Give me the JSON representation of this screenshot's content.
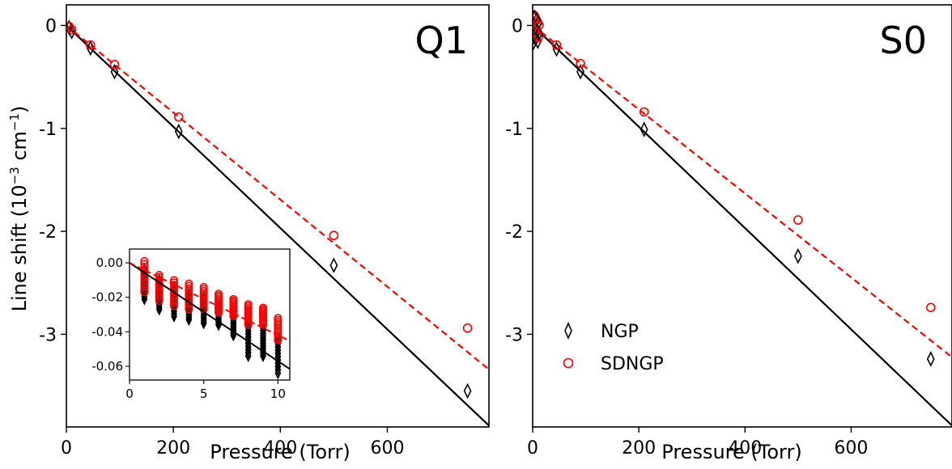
{
  "chart_data": [
    {
      "type": "scatter",
      "panel_label": "Q1",
      "xlabel": "Pressure (Torr)",
      "ylabel_prefix": "Line shift (10",
      "ylabel_sup1": "−3",
      "ylabel_mid": " cm",
      "ylabel_sup2": "−1",
      "ylabel_suffix": ")",
      "xlim": [
        0,
        790
      ],
      "ylim": [
        -3.9,
        0.2
      ],
      "xticks": [
        0,
        200,
        400,
        600
      ],
      "xtick_labels": [
        "0",
        "200",
        "400",
        "600"
      ],
      "yticks": [
        0,
        -1,
        -2,
        -3
      ],
      "ytick_labels": [
        "0",
        "-1",
        "-2",
        "-3"
      ],
      "colors": {
        "NGP": "#000000",
        "SDNGP": "#ff0000"
      },
      "series": [
        {
          "name": "NGP",
          "marker": "diamond",
          "color": "#000000",
          "x": [
            5,
            10,
            45,
            90,
            210,
            500,
            750
          ],
          "y": [
            -0.02,
            -0.06,
            -0.22,
            -0.45,
            -1.03,
            -2.33,
            -3.55
          ]
        },
        {
          "name": "SDNGP",
          "marker": "circle",
          "color": "#ff0000",
          "x": [
            5,
            10,
            45,
            90,
            210,
            500,
            750
          ],
          "y": [
            -0.01,
            -0.04,
            -0.19,
            -0.38,
            -0.89,
            -2.04,
            -2.94
          ]
        }
      ],
      "fits": [
        {
          "series": "NGP",
          "style": "solid",
          "color": "#000000",
          "slope": -0.00492,
          "intercept": 0
        },
        {
          "series": "SDNGP",
          "style": "dashed",
          "color": "#ff0000",
          "slope": -0.00423,
          "intercept": 0
        }
      ],
      "inset": {
        "xlim": [
          0,
          10.8
        ],
        "ylim": [
          -0.068,
          0.008
        ],
        "xticks": [
          0,
          5,
          10
        ],
        "xtick_labels": [
          "0",
          "5",
          "10"
        ],
        "yticks": [
          0.0,
          -0.02,
          -0.04,
          -0.06
        ],
        "ytick_labels": [
          "0.00",
          "-0.02",
          "-0.04",
          "-0.06"
        ],
        "NGP_x": [
          1,
          2,
          3,
          4,
          5,
          6,
          7,
          8,
          9,
          10
        ],
        "NGP_range": [
          [
            -0.021,
            -0.004
          ],
          [
            -0.027,
            -0.01
          ],
          [
            -0.031,
            -0.014
          ],
          [
            -0.033,
            -0.018
          ],
          [
            -0.035,
            -0.02
          ],
          [
            -0.036,
            -0.025
          ],
          [
            -0.042,
            -0.03
          ],
          [
            -0.054,
            -0.034
          ],
          [
            -0.054,
            -0.038
          ],
          [
            -0.064,
            -0.043
          ]
        ],
        "SDNGP_x": [
          1,
          2,
          3,
          4,
          5,
          6,
          7,
          8,
          9,
          10
        ],
        "SDNGP_range": [
          [
            -0.017,
            0.001
          ],
          [
            -0.022,
            -0.007
          ],
          [
            -0.025,
            -0.01
          ],
          [
            -0.027,
            -0.012
          ],
          [
            -0.027,
            -0.014
          ],
          [
            -0.029,
            -0.018
          ],
          [
            -0.031,
            -0.021
          ],
          [
            -0.036,
            -0.024
          ],
          [
            -0.036,
            -0.026
          ],
          [
            -0.045,
            -0.032
          ]
        ],
        "fits": [
          {
            "series": "NGP",
            "style": "solid",
            "color": "#000000",
            "slope": -0.0057,
            "intercept": 0
          },
          {
            "series": "SDNGP",
            "style": "dashed",
            "color": "#ff0000",
            "slope": -0.0042,
            "intercept": 0
          }
        ]
      }
    },
    {
      "type": "scatter",
      "panel_label": "S0",
      "xlabel": "Pressure (Torr)",
      "xlim": [
        0,
        790
      ],
      "ylim": [
        -3.9,
        0.2
      ],
      "xticks": [
        0,
        200,
        400,
        600
      ],
      "xtick_labels": [
        "0",
        "200",
        "400",
        "600"
      ],
      "yticks": [
        0,
        -1,
        -2,
        -3
      ],
      "ytick_labels": [
        "0",
        "-1",
        "-2",
        "-3"
      ],
      "legend": {
        "placement": "lower-left",
        "entries": [
          "NGP",
          "SDNGP"
        ]
      },
      "colors": {
        "NGP": "#000000",
        "SDNGP": "#ff0000"
      },
      "series": [
        {
          "name": "NGP",
          "marker": "diamond",
          "color": "#000000",
          "x": [
            45,
            90,
            210,
            500,
            750
          ],
          "y": [
            -0.23,
            -0.45,
            -1.01,
            -2.24,
            -3.24
          ]
        },
        {
          "name": "SDNGP",
          "marker": "circle",
          "color": "#ff0000",
          "x": [
            45,
            90,
            210,
            500,
            750
          ],
          "y": [
            -0.19,
            -0.37,
            -0.84,
            -1.89,
            -2.74
          ]
        }
      ],
      "cluster": {
        "x_max": 12,
        "NGP_range": [
          -0.18,
          0.08
        ],
        "SDNGP_range": [
          -0.14,
          0.1
        ]
      },
      "fits": [
        {
          "series": "NGP",
          "style": "solid",
          "color": "#000000",
          "slope": -0.00492,
          "intercept": 0
        },
        {
          "series": "SDNGP",
          "style": "dashed",
          "color": "#ff0000",
          "slope": -0.00408,
          "intercept": 0
        }
      ]
    }
  ]
}
